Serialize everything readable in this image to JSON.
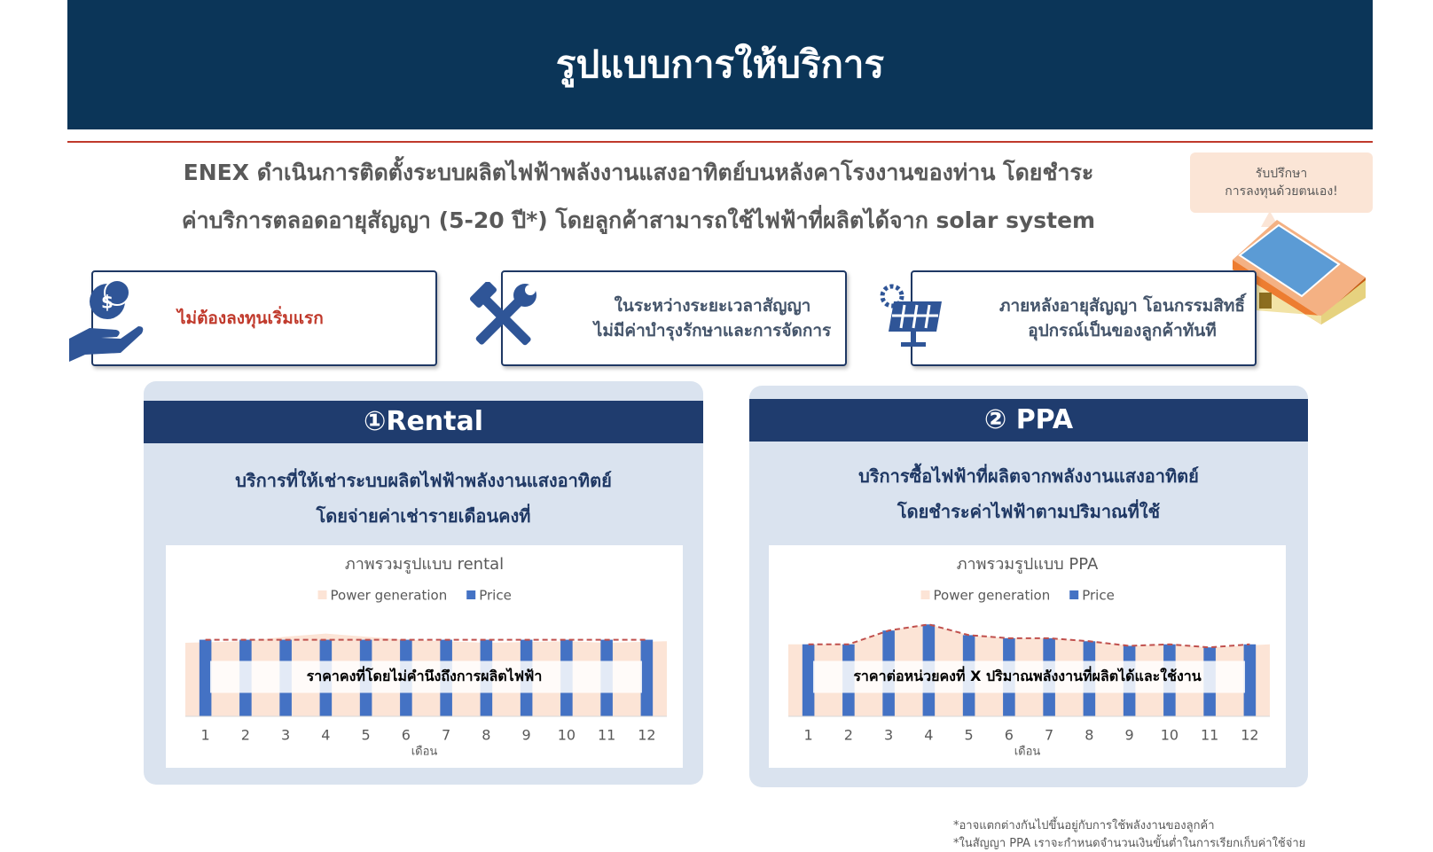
{
  "header": {
    "title": "รูปแบบการให้บริการ"
  },
  "intro": {
    "lines": [
      "ENEX ดำเนินการติดตั้งระบบผลิตไฟฟ้าพลังงานแสงอาทิตย์บนหลังคาโรงงานของท่าน โดยชำระ",
      "ค่าบริการตลอดอายุสัญญา (5-20 ปี*) โดยลูกค้าสามารถใช้ไฟฟ้าที่ผลิตได้จาก solar system"
    ]
  },
  "callout": {
    "lines": [
      "รับปรึกษา",
      "การลงทุนด้วยตนเอง!"
    ]
  },
  "features": [
    {
      "lines": [
        "ไม่ต้องลงทุนเริ่มแรก"
      ]
    },
    {
      "lines": [
        "ในระหว่างระยะเวลาสัญญา",
        "ไม่มีค่าบำรุงรักษาและการจัดการ"
      ]
    },
    {
      "lines": [
        "ภายหลังอายุสัญญา โอนกรรมสิทธิ์",
        "อุปกรณ์เป็นของลูกค้าทันที"
      ]
    }
  ],
  "services": [
    {
      "title": "①Rental",
      "description": [
        "บริการที่ให้เช่าระบบผลิตไฟฟ้าพลังงานแสงอาทิตย์",
        "โดยจ่ายค่าเช่ารายเดือนคงที่"
      ]
    },
    {
      "title": "② PPA",
      "description": [
        "บริการซื้อไฟฟ้าที่ผลิตจากพลังงานแสงอาทิตย์",
        "โดยชำระค่าไฟฟ้าตามปริมาณที่ใช้"
      ]
    }
  ],
  "chart_data": [
    {
      "type": "bar",
      "title": "ภาพรวมรูปแบบ rental",
      "categories": [
        "1",
        "2",
        "3",
        "4",
        "5",
        "6",
        "7",
        "8",
        "9",
        "10",
        "11",
        "12"
      ],
      "x_label": "เดือน",
      "series": [
        {
          "name": "Power generation",
          "type": "area",
          "color": "#fce4d6",
          "values": [
            96,
            98,
            104,
            108,
            104,
            100,
            98,
            96,
            97,
            98,
            96,
            98
          ]
        },
        {
          "name": "Price",
          "type": "bar",
          "color": "#4472c4",
          "values": [
            100,
            100,
            100,
            100,
            100,
            100,
            100,
            100,
            100,
            100,
            100,
            100
          ]
        }
      ],
      "ylim": [
        0,
        140
      ],
      "trend_color": "#c0504d",
      "annotation": "ราคาคงที่โดยไม่คำนึงถึงการผลิตไฟฟ้า"
    },
    {
      "type": "bar",
      "title": "ภาพรวมรูปแบบ PPA",
      "categories": [
        "1",
        "2",
        "3",
        "4",
        "5",
        "6",
        "7",
        "8",
        "9",
        "10",
        "11",
        "12"
      ],
      "x_label": "เดือน",
      "series": [
        {
          "name": "Power generation",
          "type": "area",
          "color": "#fce4d6",
          "values": [
            94,
            94,
            112,
            120,
            106,
            102,
            102,
            98,
            92,
            94,
            90,
            94
          ]
        },
        {
          "name": "Price",
          "type": "bar",
          "color": "#4472c4",
          "values": [
            94,
            94,
            112,
            120,
            106,
            102,
            102,
            98,
            92,
            94,
            90,
            94
          ]
        }
      ],
      "ylim": [
        0,
        140
      ],
      "trend_color": "#c0504d",
      "annotation": "ราคาต่อหน่วยคงที่ X ปริมาณพลังงานที่ผลิตได้และใช้งาน"
    }
  ],
  "footnotes": [
    "*อาจแตกต่างกันไปขึ้นอยู่กับการใช้พลังงานของลูกค้า",
    "*ในสัญญา PPA เราจะกำหนดจำนวนเงินขั้นต่ำในการเรียกเก็บค่าใช้จ่าย"
  ]
}
